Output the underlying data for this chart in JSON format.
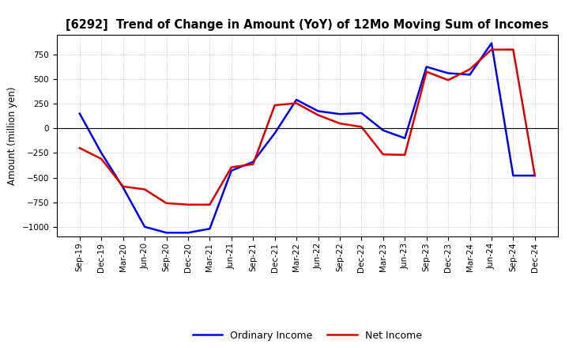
{
  "title": "[6292]  Trend of Change in Amount (YoY) of 12Mo Moving Sum of Incomes",
  "ylabel": "Amount (million yen)",
  "background_color": "#ffffff",
  "plot_background_color": "#ffffff",
  "grid_color": "#bbbbbb",
  "x_labels": [
    "Sep-19",
    "Dec-19",
    "Mar-20",
    "Jun-20",
    "Sep-20",
    "Dec-20",
    "Mar-21",
    "Jun-21",
    "Sep-21",
    "Dec-21",
    "Mar-22",
    "Jun-22",
    "Sep-22",
    "Dec-22",
    "Mar-23",
    "Jun-23",
    "Sep-23",
    "Dec-23",
    "Mar-24",
    "Jun-24",
    "Sep-24",
    "Dec-24"
  ],
  "ordinary_income": [
    150,
    -250,
    -600,
    -1000,
    -1060,
    -1060,
    -1020,
    -430,
    -340,
    -50,
    290,
    175,
    145,
    155,
    -20,
    -100,
    625,
    560,
    545,
    865,
    -480,
    -480
  ],
  "net_income": [
    -200,
    -310,
    -590,
    -620,
    -760,
    -775,
    -775,
    -395,
    -365,
    235,
    255,
    135,
    50,
    15,
    -265,
    -270,
    575,
    490,
    600,
    800,
    800,
    -480
  ],
  "ordinary_color": "#0000ee",
  "net_color": "#dd0000",
  "ylim": [
    -1100,
    950
  ],
  "yticks": [
    -1000,
    -750,
    -500,
    -250,
    0,
    250,
    500,
    750
  ],
  "legend_labels": [
    "Ordinary Income",
    "Net Income"
  ],
  "line_width": 1.8
}
